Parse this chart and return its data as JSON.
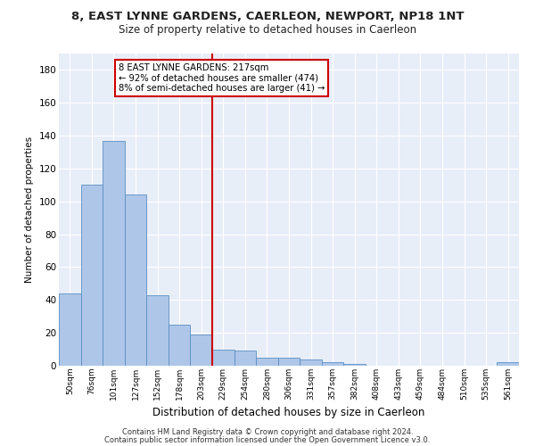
{
  "title1": "8, EAST LYNNE GARDENS, CAERLEON, NEWPORT, NP18 1NT",
  "title2": "Size of property relative to detached houses in Caerleon",
  "xlabel": "Distribution of detached houses by size in Caerleon",
  "ylabel": "Number of detached properties",
  "bar_labels": [
    "50sqm",
    "76sqm",
    "101sqm",
    "127sqm",
    "152sqm",
    "178sqm",
    "203sqm",
    "229sqm",
    "254sqm",
    "280sqm",
    "306sqm",
    "331sqm",
    "357sqm",
    "382sqm",
    "408sqm",
    "433sqm",
    "459sqm",
    "484sqm",
    "510sqm",
    "535sqm",
    "561sqm"
  ],
  "bar_values": [
    44,
    110,
    137,
    104,
    43,
    25,
    19,
    10,
    9,
    5,
    5,
    4,
    2,
    1,
    0,
    0,
    0,
    0,
    0,
    0,
    2
  ],
  "bar_color": "#aec6e8",
  "bar_edge_color": "#5a8fc2",
  "vline_x_index": 7.0,
  "vline_color": "#cc0000",
  "annotation_text": "8 EAST LYNNE GARDENS: 217sqm\n← 92% of detached houses are smaller (474)\n8% of semi-detached houses are larger (41) →",
  "annotation_box_color": "#ffffff",
  "annotation_box_edge_color": "#cc0000",
  "ylim": [
    0,
    190
  ],
  "yticks": [
    0,
    20,
    40,
    60,
    80,
    100,
    120,
    140,
    160,
    180
  ],
  "footer1": "Contains HM Land Registry data © Crown copyright and database right 2024.",
  "footer2": "Contains public sector information licensed under the Open Government Licence v3.0.",
  "bg_color": "#e8eef8"
}
